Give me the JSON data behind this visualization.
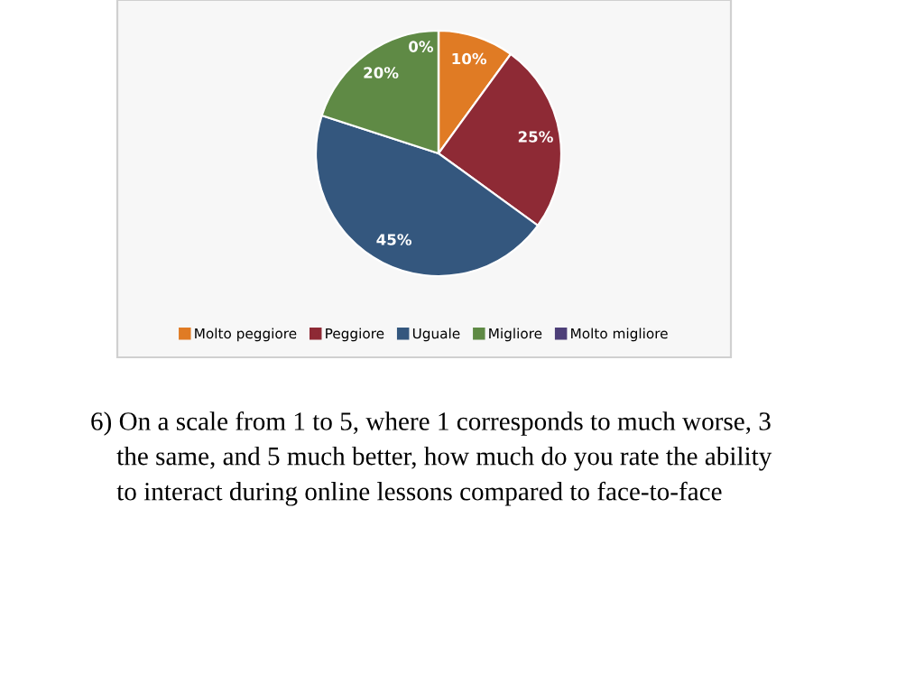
{
  "chart_data": {
    "type": "pie",
    "categories": [
      "Molto peggiore",
      "Peggiore",
      "Uguale",
      "Migliore",
      "Molto migliore"
    ],
    "values": [
      10,
      25,
      45,
      20,
      0
    ],
    "colors": [
      "#e07b24",
      "#8e2a35",
      "#34577e",
      "#5f8a45",
      "#4d3f78"
    ],
    "value_labels": [
      "10%",
      "25%",
      "45%",
      "20%",
      "0%"
    ],
    "legend": "bottom",
    "annotations": [
      "6) On a scale from 1 to 5, where 1 corresponds to much worse, 3\n    the same, and 5 much better, how much do you rate the ability\n    to interact during online lessons compared to face-to-face"
    ]
  }
}
